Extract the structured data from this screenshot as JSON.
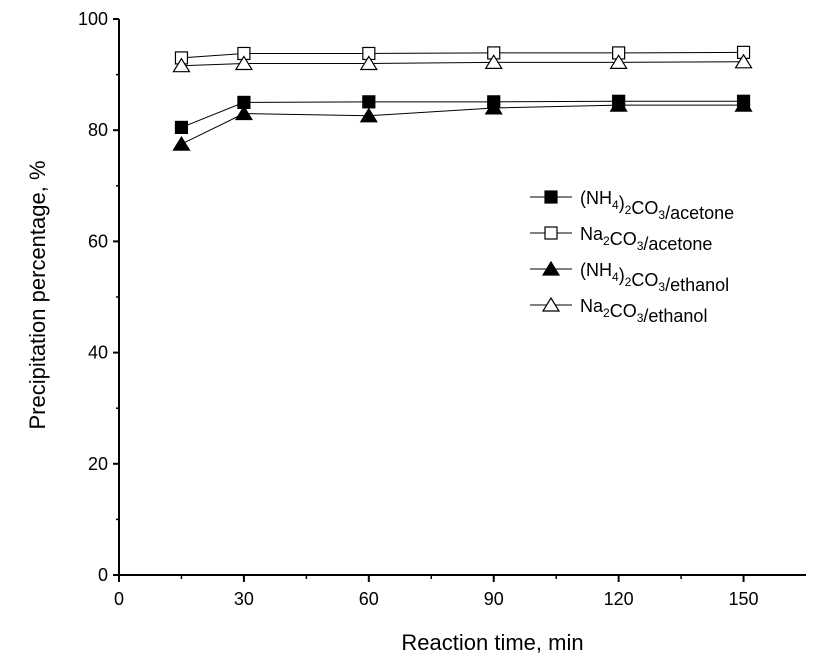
{
  "chart_data": {
    "type": "line",
    "title": "",
    "xlabel": "Reaction time, min",
    "ylabel": "Precipitation percentage, %",
    "xlim": [
      0,
      165
    ],
    "ylim": [
      0,
      100
    ],
    "xticks": [
      "0",
      "30",
      "60",
      "90",
      "120",
      "150"
    ],
    "yticks": [
      "0",
      "20",
      "40",
      "60",
      "80",
      "100"
    ],
    "x": [
      15,
      30,
      60,
      90,
      120,
      150
    ],
    "legend_position": "right, mid-upper",
    "series": [
      {
        "name": "(NH4)2CO3/acetone",
        "legend_parts": [
          {
            "t": "(NH",
            "sub": false
          },
          {
            "t": "4",
            "sub": true
          },
          {
            "t": ")",
            "sub": false
          },
          {
            "t": "2",
            "sub": true
          },
          {
            "t": "CO",
            "sub": false
          },
          {
            "t": "3",
            "sub": true
          },
          {
            "t": "/acetone",
            "sub": false
          }
        ],
        "marker": "square-filled",
        "values": [
          80.5,
          85.0,
          85.1,
          85.1,
          85.2,
          85.2
        ]
      },
      {
        "name": "Na2CO3/acetone",
        "legend_parts": [
          {
            "t": "Na",
            "sub": false
          },
          {
            "t": "2",
            "sub": true
          },
          {
            "t": "CO",
            "sub": false
          },
          {
            "t": "3",
            "sub": true
          },
          {
            "t": "/acetone",
            "sub": false
          }
        ],
        "marker": "square-open",
        "values": [
          93.0,
          93.8,
          93.8,
          93.9,
          93.9,
          94.0
        ]
      },
      {
        "name": "(NH4)2CO3/ethanol",
        "legend_parts": [
          {
            "t": "(NH",
            "sub": false
          },
          {
            "t": "4",
            "sub": true
          },
          {
            "t": ")",
            "sub": false
          },
          {
            "t": "2",
            "sub": true
          },
          {
            "t": "CO",
            "sub": false
          },
          {
            "t": "3",
            "sub": true
          },
          {
            "t": "/ethanol",
            "sub": false
          }
        ],
        "marker": "triangle-filled",
        "values": [
          77.5,
          83.0,
          82.6,
          84.0,
          84.5,
          84.5
        ]
      },
      {
        "name": "Na2CO3/ethanol",
        "legend_parts": [
          {
            "t": "Na",
            "sub": false
          },
          {
            "t": "2",
            "sub": true
          },
          {
            "t": "CO",
            "sub": false
          },
          {
            "t": "3",
            "sub": true
          },
          {
            "t": "/ethanol",
            "sub": false
          }
        ],
        "marker": "triangle-open",
        "values": [
          91.6,
          92.0,
          92.0,
          92.2,
          92.2,
          92.3
        ]
      }
    ],
    "colors": {
      "line": "#000000",
      "background": "#ffffff"
    }
  }
}
